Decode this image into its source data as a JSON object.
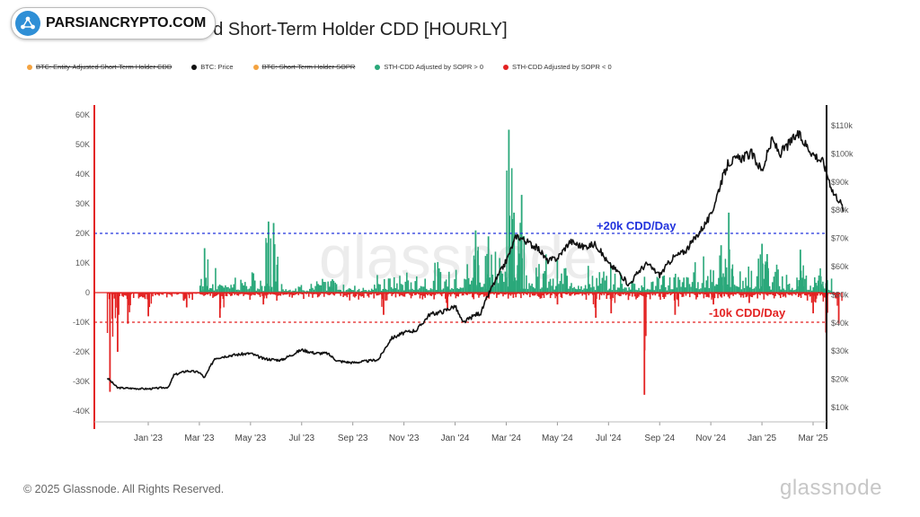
{
  "brand": {
    "name": "PARSIANCRYPTO.COM",
    "icon": "network-icon",
    "color": "#2f8fd6"
  },
  "title": "Bitcoin: SOPR-Adjusted Short-Term Holder CDD [HOURLY]",
  "legend": [
    {
      "label": "BTC: Entity-Adjusted Short-Term Holder CDD",
      "color": "#f4a340",
      "hidden": true
    },
    {
      "label": "BTC: Price",
      "color": "#111111",
      "hidden": false
    },
    {
      "label": "BTC: Short-Term Holder SOPR",
      "color": "#f4a340",
      "hidden": true
    },
    {
      "label": "STH-CDD Adjusted by SOPR > 0",
      "color": "#2aa87a",
      "hidden": false
    },
    {
      "label": "STH-CDD Adjusted by SOPR < 0",
      "color": "#e32222",
      "hidden": false
    }
  ],
  "watermark": "glassnode",
  "footer": {
    "copyright": "© 2025 Glassnode. All Rights Reserved.",
    "logo_text": "glassnode"
  },
  "colors": {
    "green": "#2aa87a",
    "red": "#e32222",
    "price": "#111111",
    "blue_line": "#2233dd",
    "axis_red": "#e32222"
  },
  "chart_data": {
    "type": "bar",
    "x_ticks": [
      "Jan '23",
      "Mar '23",
      "May '23",
      "Jul '23",
      "Sep '23",
      "Nov '23",
      "Jan '24",
      "Mar '24",
      "May '24",
      "Jul '24",
      "Sep '24",
      "Nov '24",
      "Jan '25",
      "Mar '25"
    ],
    "x_range_months": [
      0,
      27
    ],
    "y_left": {
      "ticks": [
        "60K",
        "50K",
        "40K",
        "30K",
        "20K",
        "10K",
        "0",
        "-10K",
        "-20K",
        "-30K",
        "-40K"
      ],
      "range": [
        -40000,
        60000
      ]
    },
    "y_right": {
      "ticks": [
        "$110k",
        "$100k",
        "$90k",
        "$80k",
        "$70k",
        "$60k",
        "$50k",
        "$40k",
        "$30k",
        "$20k",
        "$10k"
      ],
      "range": [
        10000,
        110000
      ]
    },
    "reference_lines": [
      {
        "label": "+20k CDD/Day",
        "value": 20000,
        "color": "#2233dd"
      },
      {
        "label": "-10k CDD/Day",
        "value": -10000,
        "color": "#e32222"
      }
    ],
    "series": [
      {
        "name": "BTC: Price",
        "kind": "line",
        "axis": "right",
        "points": [
          [
            -1.6,
            20500
          ],
          [
            -1.2,
            17000
          ],
          [
            -0.4,
            16700
          ],
          [
            0,
            16600
          ],
          [
            0.8,
            17200
          ],
          [
            1,
            21500
          ],
          [
            1.5,
            23000
          ],
          [
            2,
            22500
          ],
          [
            2.2,
            20500
          ],
          [
            2.6,
            27500
          ],
          [
            3.2,
            28500
          ],
          [
            4,
            29200
          ],
          [
            4.5,
            27300
          ],
          [
            5.2,
            26800
          ],
          [
            6,
            30500
          ],
          [
            6.5,
            29300
          ],
          [
            7,
            29200
          ],
          [
            7.4,
            26500
          ],
          [
            8,
            25900
          ],
          [
            8.6,
            26500
          ],
          [
            9,
            27000
          ],
          [
            9.5,
            34500
          ],
          [
            10,
            36500
          ],
          [
            10.5,
            37500
          ],
          [
            11,
            43000
          ],
          [
            11.5,
            44000
          ],
          [
            12,
            46000
          ],
          [
            12.3,
            40000
          ],
          [
            12.8,
            43000
          ],
          [
            13,
            43500
          ],
          [
            13.4,
            52000
          ],
          [
            14,
            62000
          ],
          [
            14.4,
            71000
          ],
          [
            14.7,
            69500
          ],
          [
            15.3,
            66000
          ],
          [
            15.6,
            62000
          ],
          [
            16,
            63000
          ],
          [
            16.5,
            69000
          ],
          [
            17,
            67000
          ],
          [
            17.5,
            68000
          ],
          [
            18,
            61000
          ],
          [
            18.4,
            58000
          ],
          [
            18.8,
            53500
          ],
          [
            19,
            56000
          ],
          [
            19.2,
            58500
          ],
          [
            19.5,
            61000
          ],
          [
            20,
            57000
          ],
          [
            20.5,
            63000
          ],
          [
            21,
            65500
          ],
          [
            21.3,
            69000
          ],
          [
            22,
            78000
          ],
          [
            22.4,
            90000
          ],
          [
            22.7,
            97000
          ],
          [
            23,
            98000
          ],
          [
            23.6,
            100000
          ],
          [
            24,
            94000
          ],
          [
            24.4,
            105000
          ],
          [
            24.7,
            100000
          ],
          [
            25,
            103000
          ],
          [
            25.4,
            107000
          ],
          [
            26,
            100000
          ],
          [
            26.4,
            97000
          ],
          [
            26.8,
            86000
          ],
          [
            27,
            84000
          ],
          [
            27.2,
            80000
          ]
        ]
      },
      {
        "name": "STH-CDD Adjusted by SOPR > 0",
        "kind": "bar",
        "sign": "positive",
        "spikes": [
          [
            2.2,
            15000
          ],
          [
            4.7,
            24000
          ],
          [
            4.9,
            23500
          ],
          [
            7.2,
            4500
          ],
          [
            12.8,
            21000
          ],
          [
            13.3,
            19000
          ],
          [
            14.1,
            55000
          ],
          [
            14.3,
            27000
          ],
          [
            14.6,
            33000
          ],
          [
            22.4,
            16000
          ],
          [
            22.7,
            27000
          ],
          [
            24,
            16500
          ],
          [
            24.2,
            13000
          ],
          [
            25.5,
            14500
          ],
          [
            26.3,
            5500
          ]
        ],
        "baseline_levels": [
          [
            2,
            3500
          ],
          [
            3,
            5000
          ],
          [
            4,
            4000
          ],
          [
            5,
            3000
          ],
          [
            6,
            2500
          ],
          [
            7,
            3200
          ],
          [
            8,
            2000
          ],
          [
            9,
            3500
          ],
          [
            10,
            4500
          ],
          [
            11,
            5500
          ],
          [
            12,
            7000
          ],
          [
            13,
            8000
          ],
          [
            14,
            9000
          ],
          [
            15,
            8000
          ],
          [
            16,
            6500
          ],
          [
            17,
            5500
          ],
          [
            18,
            5000
          ],
          [
            19,
            4500
          ],
          [
            20,
            4000
          ],
          [
            21,
            6000
          ],
          [
            22,
            9000
          ],
          [
            23,
            7000
          ],
          [
            24,
            6500
          ],
          [
            25,
            5500
          ],
          [
            26,
            4500
          ]
        ]
      },
      {
        "name": "STH-CDD Adjusted by SOPR < 0",
        "kind": "bar",
        "sign": "negative",
        "spikes": [
          [
            -1.5,
            -33500
          ],
          [
            -1.2,
            -20000
          ],
          [
            -0.8,
            -10500
          ],
          [
            0,
            -8000
          ],
          [
            1.5,
            -5000
          ],
          [
            2.8,
            -8500
          ],
          [
            4.5,
            -4000
          ],
          [
            9.2,
            -7500
          ],
          [
            11.7,
            -6000
          ],
          [
            16,
            -4000
          ],
          [
            17.5,
            -8500
          ],
          [
            18.1,
            -7000
          ],
          [
            19.4,
            -34500
          ],
          [
            20.6,
            -7500
          ],
          [
            22.1,
            -4000
          ],
          [
            23.5,
            -3500
          ],
          [
            26,
            -7000
          ],
          [
            26.5,
            -13500
          ],
          [
            27,
            -10500
          ]
        ]
      }
    ]
  }
}
